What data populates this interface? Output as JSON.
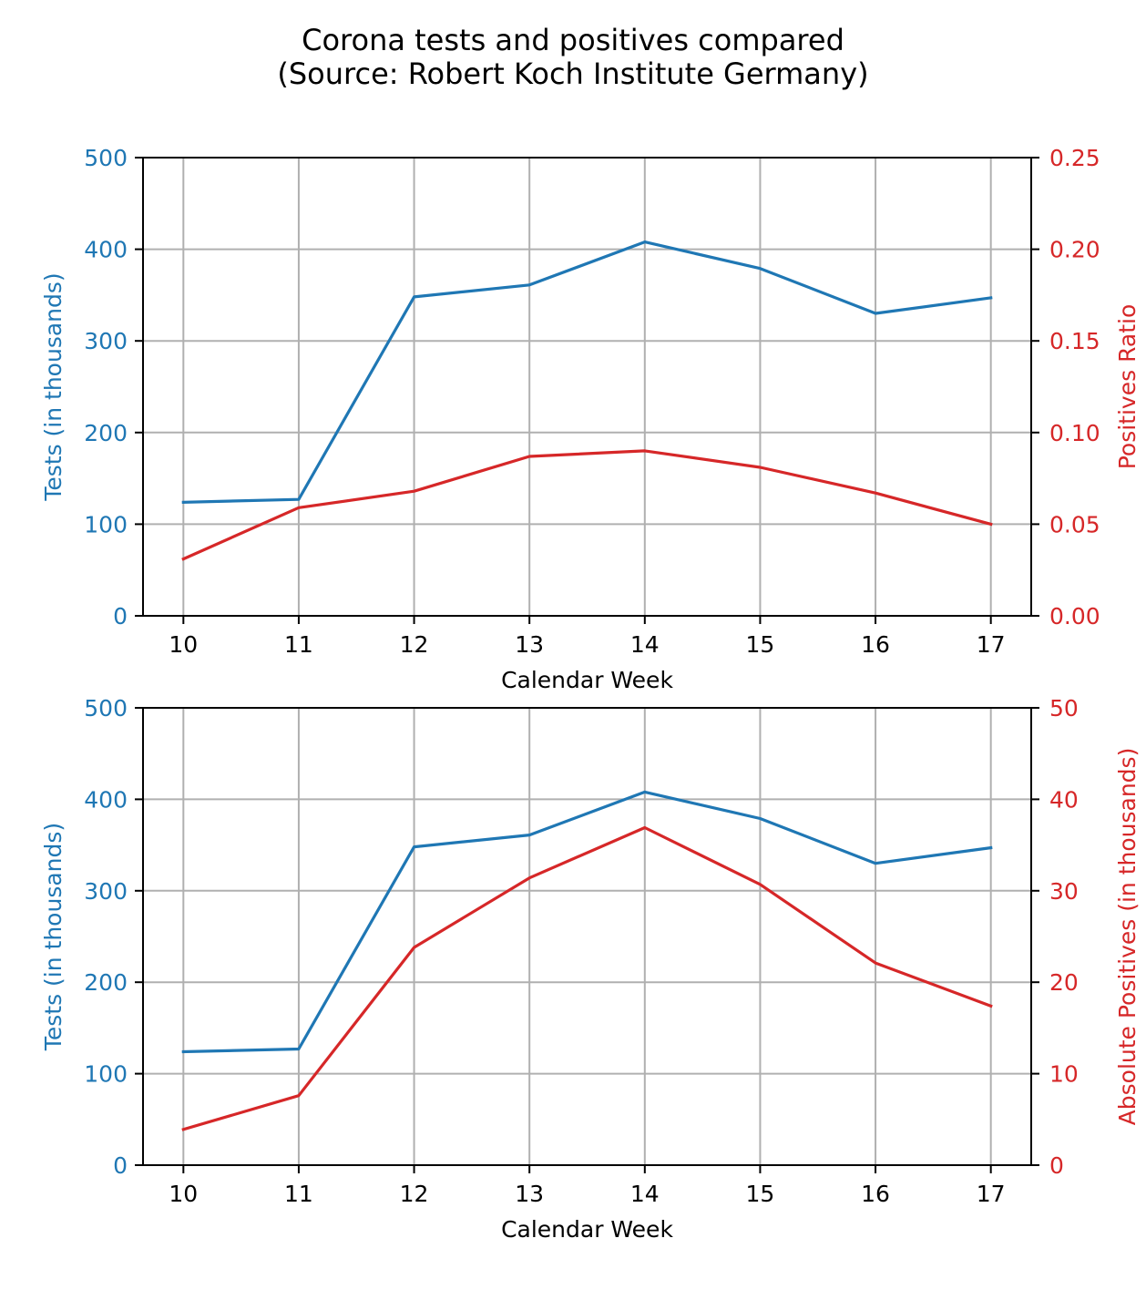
{
  "figure": {
    "title_line1": "Corona tests and positives compared",
    "title_line2": "(Source: Robert Koch Institute Germany)"
  },
  "colors": {
    "tests": "#1f77b4",
    "positives": "#d62728",
    "grid": "#b0b0b0",
    "axis": "#000000"
  },
  "chart_data": [
    {
      "type": "line",
      "xlabel": "Calendar Week",
      "ylabel_left": "Tests (in thousands)",
      "ylabel_right": "Positives Ratio",
      "x": [
        10,
        11,
        12,
        13,
        14,
        15,
        16,
        17
      ],
      "xlim": [
        9.65,
        17.35
      ],
      "ylim_left": [
        0,
        500
      ],
      "ylim_right": [
        0,
        0.25
      ],
      "yticks_left": [
        "0",
        "100",
        "200",
        "300",
        "400",
        "500"
      ],
      "yticks_right": [
        "0.00",
        "0.05",
        "0.10",
        "0.15",
        "0.20",
        "0.25"
      ],
      "grid": true,
      "series": [
        {
          "axis": "left",
          "color": "#1f77b4",
          "values": [
            124,
            127,
            348,
            361,
            408,
            379,
            330,
            347
          ]
        },
        {
          "axis": "right",
          "color": "#d62728",
          "values": [
            0.031,
            0.059,
            0.068,
            0.087,
            0.09,
            0.081,
            0.067,
            0.05
          ]
        }
      ]
    },
    {
      "type": "line",
      "xlabel": "Calendar Week",
      "ylabel_left": "Tests (in thousands)",
      "ylabel_right": "Absolute Positives (in thousands)",
      "x": [
        10,
        11,
        12,
        13,
        14,
        15,
        16,
        17
      ],
      "xlim": [
        9.65,
        17.35
      ],
      "ylim_left": [
        0,
        500
      ],
      "ylim_right": [
        0,
        50
      ],
      "yticks_left": [
        "0",
        "100",
        "200",
        "300",
        "400",
        "500"
      ],
      "yticks_right": [
        "0",
        "10",
        "20",
        "30",
        "40",
        "50"
      ],
      "grid": true,
      "series": [
        {
          "axis": "left",
          "color": "#1f77b4",
          "values": [
            124,
            127,
            348,
            361,
            408,
            379,
            330,
            347
          ]
        },
        {
          "axis": "right",
          "color": "#d62728",
          "values": [
            3.9,
            7.6,
            23.8,
            31.4,
            36.9,
            30.7,
            22.1,
            17.4
          ]
        }
      ]
    }
  ]
}
